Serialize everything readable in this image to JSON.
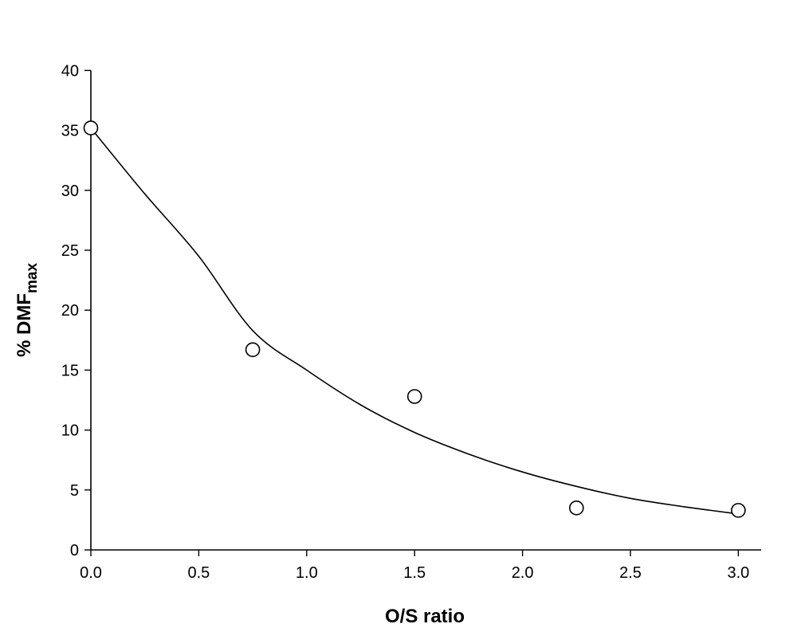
{
  "chart_data": {
    "type": "scatter",
    "title": "",
    "xlabel": "O/S ratio",
    "ylabel": {
      "main": "% DMF",
      "subscript": "max"
    },
    "xlim": [
      0,
      3.1
    ],
    "ylim": [
      0,
      40
    ],
    "x_ticks": [
      "0.0",
      "0.5",
      "1.0",
      "1.5",
      "2.0",
      "2.5",
      "3.0"
    ],
    "y_ticks": [
      "0",
      "5",
      "10",
      "15",
      "20",
      "25",
      "30",
      "35",
      "40"
    ],
    "grid": false,
    "legend": "none",
    "series": [
      {
        "marker": "open-circle",
        "points": [
          {
            "x": 0.0,
            "y": 35.2
          },
          {
            "x": 0.75,
            "y": 16.7
          },
          {
            "x": 1.5,
            "y": 12.8
          },
          {
            "x": 2.25,
            "y": 3.5
          },
          {
            "x": 3.0,
            "y": 3.3
          }
        ]
      }
    ],
    "fit_curve": {
      "kind": "exponential-decay",
      "points": [
        {
          "x": 0.0,
          "y": 35.2
        },
        {
          "x": 0.25,
          "y": 29.7
        },
        {
          "x": 0.5,
          "y": 24.5
        },
        {
          "x": 0.75,
          "y": 18.3
        },
        {
          "x": 1.0,
          "y": 15.0
        },
        {
          "x": 1.25,
          "y": 12.1
        },
        {
          "x": 1.5,
          "y": 9.8
        },
        {
          "x": 1.75,
          "y": 8.0
        },
        {
          "x": 2.0,
          "y": 6.5
        },
        {
          "x": 2.25,
          "y": 5.3
        },
        {
          "x": 2.5,
          "y": 4.3
        },
        {
          "x": 2.75,
          "y": 3.6
        },
        {
          "x": 3.0,
          "y": 3.0
        }
      ]
    }
  }
}
